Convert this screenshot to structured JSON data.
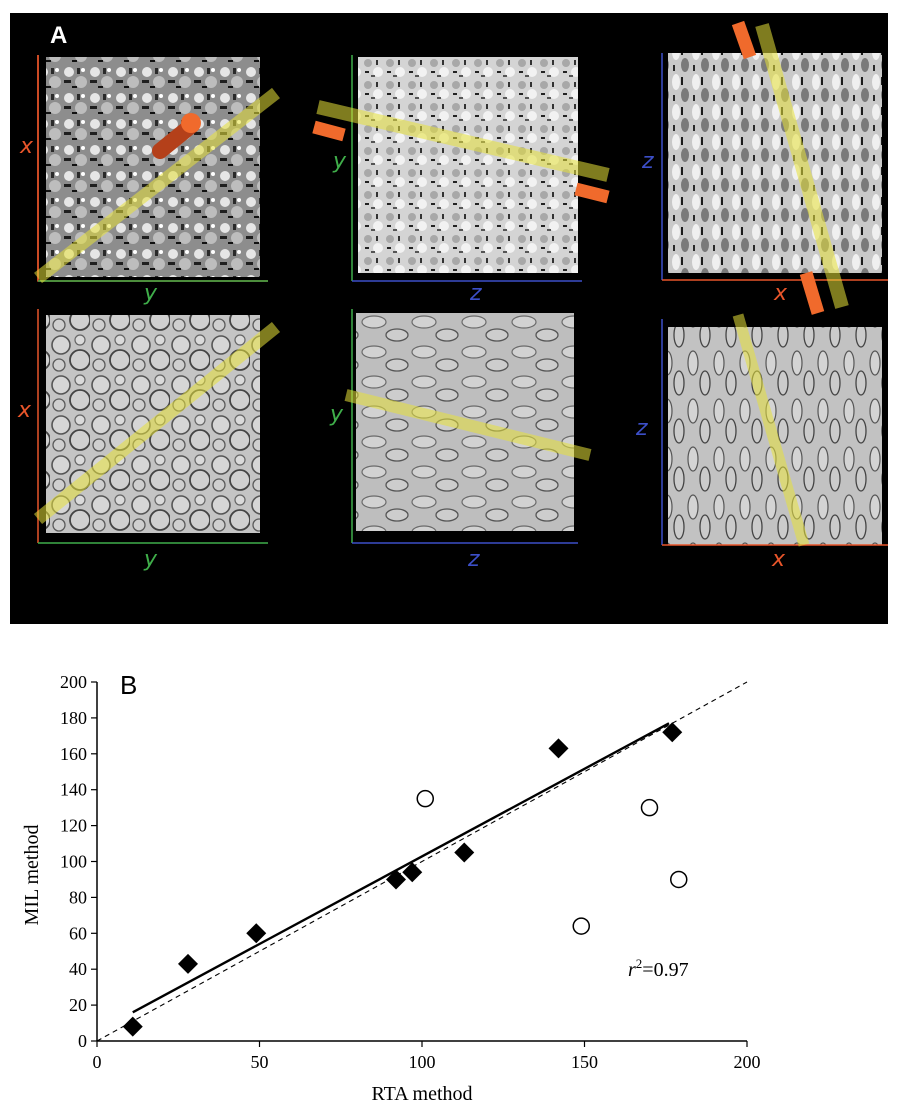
{
  "panel_a": {
    "label": "A",
    "views": [
      {
        "row": "segmented",
        "v_axis": "x",
        "h_axis": "y"
      },
      {
        "row": "segmented",
        "v_axis": "y",
        "h_axis": "z"
      },
      {
        "row": "segmented",
        "v_axis": "z",
        "h_axis": "x"
      },
      {
        "row": "grayscale",
        "v_axis": "x",
        "h_axis": "y"
      },
      {
        "row": "grayscale",
        "v_axis": "y",
        "h_axis": "z"
      },
      {
        "row": "grayscale",
        "v_axis": "z",
        "h_axis": "x"
      }
    ],
    "axis_colors": {
      "x": "#e8552a",
      "y": "#3fae4a",
      "z": "#3c4fc8"
    }
  },
  "panel_b": {
    "label": "B",
    "annotation_prefix": "r",
    "annotation_sup": "2",
    "annotation_value": "=0.97"
  },
  "chart_data": {
    "type": "scatter",
    "title": "",
    "xlabel": "RTA method",
    "ylabel": "MIL method",
    "xlim": [
      0,
      200
    ],
    "ylim": [
      0,
      200
    ],
    "xticks": [
      0,
      50,
      100,
      150,
      200
    ],
    "yticks": [
      0,
      20,
      40,
      60,
      80,
      100,
      120,
      140,
      160,
      180,
      200
    ],
    "grid": false,
    "series": [
      {
        "marker": "filled-diamond",
        "points": [
          [
            11,
            8
          ],
          [
            28,
            43
          ],
          [
            49,
            60
          ],
          [
            92,
            90
          ],
          [
            97,
            94
          ],
          [
            113,
            105
          ],
          [
            142,
            163
          ],
          [
            177,
            172
          ]
        ]
      },
      {
        "marker": "open-circle",
        "points": [
          [
            101,
            135
          ],
          [
            149,
            64
          ],
          [
            170,
            130
          ],
          [
            179,
            90
          ]
        ]
      }
    ],
    "fit_line": {
      "style": "solid",
      "from": [
        11,
        16
      ],
      "to": [
        176,
        177
      ]
    },
    "identity_line": {
      "style": "dashed",
      "from": [
        0,
        0
      ],
      "to": [
        200,
        200
      ]
    }
  }
}
